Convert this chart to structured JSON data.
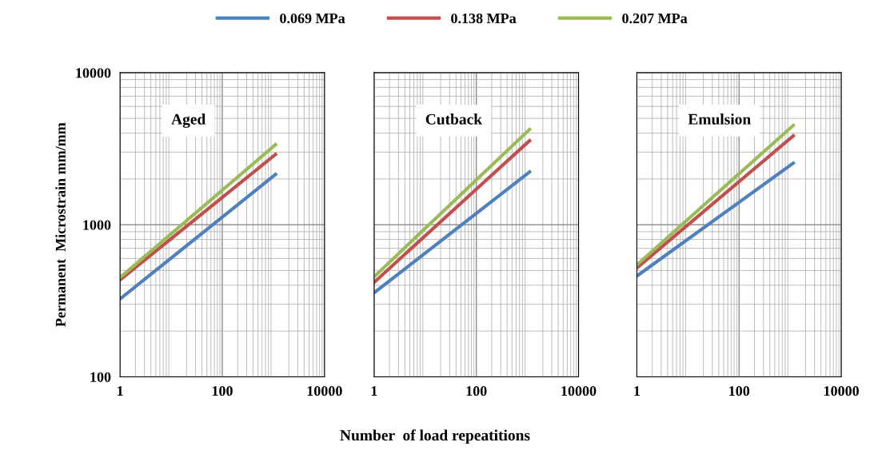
{
  "chart_data": [
    {
      "type": "line",
      "title": "Aged",
      "ylabel": "Permanent  Microstrain mm/mm",
      "log": "xy",
      "xlim": [
        1,
        10000
      ],
      "ylim": [
        100,
        10000
      ],
      "xticks": [
        1,
        100,
        10000
      ],
      "yticks": [
        100,
        1000,
        10000
      ],
      "grid": true,
      "legend": "top",
      "line_style": "solid",
      "marker": "none",
      "series": [
        {
          "name": "0.069 MPa",
          "color": "#4f81bd",
          "x": [
            1,
            1100
          ],
          "values": [
            325,
            2140
          ]
        },
        {
          "name": "0.138 MPa",
          "color": "#c0504d",
          "x": [
            1,
            1100
          ],
          "values": [
            433,
            2900
          ]
        },
        {
          "name": "0.207 MPa",
          "color": "#9bbb59",
          "x": [
            1,
            1100
          ],
          "values": [
            450,
            3360
          ]
        }
      ]
    },
    {
      "type": "line",
      "title": "Cutback",
      "xlabel": "Number  of load repeatitions",
      "log": "xy",
      "xlim": [
        1,
        10000
      ],
      "ylim": [
        100,
        10000
      ],
      "xticks": [
        1,
        100,
        10000
      ],
      "yticks": [
        100,
        1000,
        10000
      ],
      "grid": true,
      "tick_labels": "x",
      "line_style": "solid",
      "marker": "none",
      "series": [
        {
          "color": "#4f81bd",
          "x": [
            1,
            1100
          ],
          "values": [
            357,
            2220
          ]
        },
        {
          "color": "#c0504d",
          "x": [
            1,
            1100
          ],
          "values": [
            418,
            3570
          ]
        },
        {
          "color": "#9bbb59",
          "x": [
            1,
            1100
          ],
          "values": [
            455,
            4230
          ]
        }
      ]
    },
    {
      "type": "line",
      "title": "Emulsion",
      "log": "xy",
      "xlim": [
        1,
        10000
      ],
      "ylim": [
        100,
        10000
      ],
      "xticks": [
        1,
        100,
        10000
      ],
      "yticks": [
        100,
        1000,
        10000
      ],
      "grid": true,
      "tick_labels": "x",
      "line_style": "solid",
      "marker": "none",
      "series": [
        {
          "color": "#4f81bd",
          "x": [
            1,
            1150
          ],
          "values": [
            460,
            2540
          ]
        },
        {
          "color": "#c0504d",
          "x": [
            1,
            1150
          ],
          "values": [
            520,
            3840
          ]
        },
        {
          "color": "#9bbb59",
          "x": [
            1,
            1150
          ],
          "values": [
            545,
            4500
          ]
        }
      ]
    }
  ]
}
